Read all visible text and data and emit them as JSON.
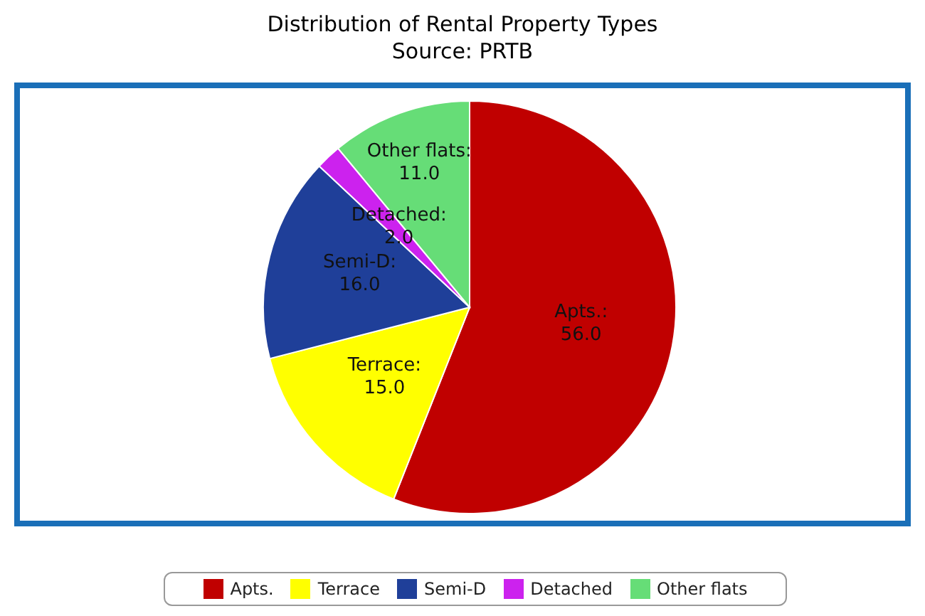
{
  "chart_data": {
    "type": "pie",
    "title": "Distribution of Rental Property Types",
    "subtitle": "Source: PRTB",
    "categories": [
      "Apts.",
      "Terrace",
      "Semi-D",
      "Detached",
      "Other flats"
    ],
    "values": [
      56,
      15,
      16,
      2,
      11
    ],
    "colors": [
      "#c00000",
      "#ffff00",
      "#1f3f99",
      "#cc22ee",
      "#66dd77"
    ],
    "value_labels": [
      "Apts.: 56.0",
      "Terrace: 15.0",
      "Semi-D: 16.0",
      "Detached: 2.0",
      "Other flats: 11.0"
    ],
    "legend": "bottom"
  }
}
